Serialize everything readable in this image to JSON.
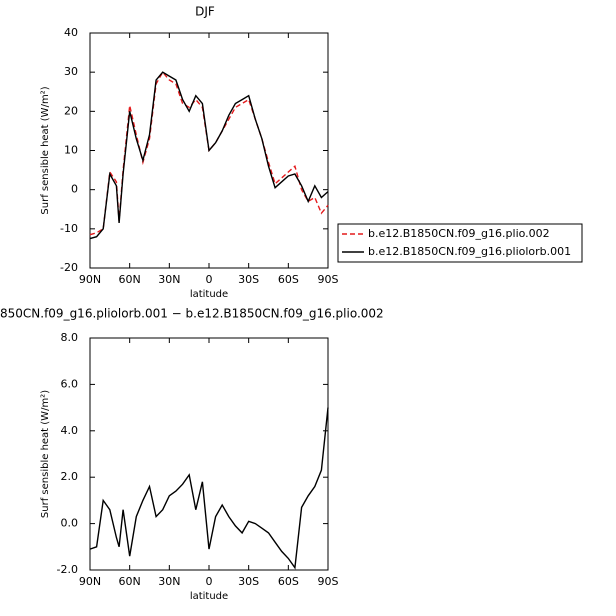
{
  "chart_data": [
    {
      "type": "line",
      "title": "DJF",
      "ylabel": "Surf sensible heat (W/m²)",
      "xlabel": "latitude",
      "x": [
        90,
        85,
        80,
        75,
        70,
        68,
        65,
        60,
        55,
        50,
        45,
        40,
        35,
        30,
        25,
        20,
        15,
        10,
        5,
        0,
        -5,
        -10,
        -15,
        -20,
        -25,
        -30,
        -35,
        -40,
        -45,
        -50,
        -55,
        -60,
        -65,
        -70,
        -75,
        -80,
        -85,
        -90
      ],
      "xlim": [
        90,
        -90
      ],
      "xticks": [
        {
          "value": 90,
          "label": "90N"
        },
        {
          "value": 60,
          "label": "60N"
        },
        {
          "value": 30,
          "label": "30N"
        },
        0,
        {
          "value": -30,
          "label": "30S"
        },
        {
          "value": -60,
          "label": "60S"
        },
        {
          "value": -90,
          "label": "90S"
        }
      ],
      "ylim": [
        -20,
        40
      ],
      "yticks": [
        -20,
        -10,
        0,
        10,
        20,
        30,
        40
      ],
      "legend": "right",
      "series": [
        {
          "name": "b.e12.B1850CN.f09_g16.plio.002",
          "color": "#e41a1c",
          "dashed": true,
          "values": [
            -11.5,
            -11,
            -10,
            4.5,
            2,
            -8,
            5,
            21.5,
            14,
            7,
            13,
            27,
            30,
            28,
            27,
            22,
            21,
            23,
            21,
            10,
            12,
            15,
            18,
            21,
            22,
            23,
            18,
            13,
            7,
            1.5,
            3,
            4.5,
            6,
            0,
            -3,
            -2,
            -6,
            -4
          ]
        },
        {
          "name": "b.e12.B1850CN.f09_g16.pliolorb.001",
          "color": "#000000",
          "dashed": false,
          "values": [
            -12.5,
            -12,
            -10,
            4,
            1,
            -8.5,
            4,
            20,
            13,
            7.5,
            14,
            28,
            30,
            29,
            28,
            23,
            20,
            24,
            22,
            10,
            12,
            15,
            19,
            22,
            23,
            24,
            18,
            13,
            6,
            0.5,
            2,
            3.5,
            4,
            1,
            -3,
            1,
            -2,
            -0.5
          ]
        }
      ]
    },
    {
      "type": "line",
      "title": "850CN.f09_g16.pliolorb.001 − b.e12.B1850CN.f09_g16.plio.002",
      "ylabel": "Surf sensible heat (W/m²)",
      "xlabel": "latitude",
      "x": [
        90,
        85,
        80,
        75,
        70,
        68,
        65,
        60,
        55,
        50,
        45,
        40,
        35,
        30,
        25,
        20,
        15,
        10,
        5,
        0,
        -5,
        -10,
        -15,
        -20,
        -25,
        -30,
        -35,
        -40,
        -45,
        -50,
        -55,
        -60,
        -65,
        -70,
        -75,
        -80,
        -85,
        -90
      ],
      "xlim": [
        90,
        -90
      ],
      "xticks": [
        {
          "value": 90,
          "label": "90N"
        },
        {
          "value": 60,
          "label": "60N"
        },
        {
          "value": 30,
          "label": "30N"
        },
        0,
        {
          "value": -30,
          "label": "30S"
        },
        {
          "value": -60,
          "label": "60S"
        },
        {
          "value": -90,
          "label": "90S"
        }
      ],
      "ylim": [
        -2,
        8
      ],
      "yticks": [
        {
          "value": -2,
          "label": "-2.0"
        },
        {
          "value": 0,
          "label": "0.0"
        },
        {
          "value": 2,
          "label": "2.0"
        },
        {
          "value": 4,
          "label": "4.0"
        },
        {
          "value": 6,
          "label": "6.0"
        },
        {
          "value": 8,
          "label": "8.0"
        }
      ],
      "series": [
        {
          "color": "#000000",
          "dashed": false,
          "values": [
            -1.1,
            -1.0,
            1.0,
            0.6,
            -0.6,
            -1.0,
            0.6,
            -1.4,
            0.3,
            1.0,
            1.6,
            0.3,
            0.6,
            1.2,
            1.4,
            1.7,
            2.1,
            0.6,
            1.8,
            -1.1,
            0.3,
            0.8,
            0.3,
            -0.1,
            -0.4,
            0.1,
            0.0,
            -0.2,
            -0.4,
            -0.8,
            -1.2,
            -1.5,
            -1.9,
            0.7,
            1.2,
            1.6,
            2.3,
            5.0
          ]
        }
      ]
    }
  ]
}
